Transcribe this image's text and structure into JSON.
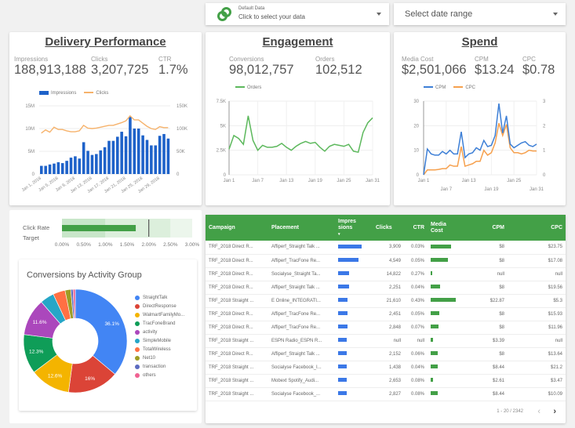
{
  "header": {
    "data_source": {
      "title": "Default Data",
      "subtitle": "Click to select your data"
    },
    "date_range": {
      "label": "Select date range"
    }
  },
  "delivery": {
    "title": "Delivery Performance",
    "kpis": [
      {
        "label": "Impressions",
        "value": "188,913,188"
      },
      {
        "label": "Clicks",
        "value": "3,207,725"
      },
      {
        "label": "CTR",
        "value": "1.7%"
      }
    ]
  },
  "engagement": {
    "title": "Engagement",
    "kpis": [
      {
        "label": "Conversions",
        "value": "98,012,757"
      },
      {
        "label": "Orders",
        "value": "102,512"
      }
    ]
  },
  "spend": {
    "title": "Spend",
    "kpis": [
      {
        "label": "Media Cost",
        "value": "$2,501,066"
      },
      {
        "label": "CPM",
        "value": "$13.24"
      },
      {
        "label": "CPC",
        "value": "$0.78"
      }
    ]
  },
  "bullet": {
    "labels": [
      "Click Rate",
      "Target"
    ],
    "value_percent": 1.7,
    "target_percent": 2.0,
    "ranges_percent": [
      1.0,
      2.5,
      3.0
    ],
    "ticks": [
      "0.00%",
      "0.50%",
      "1.00%",
      "1.50%",
      "2.00%",
      "2.50%",
      "3.00%"
    ],
    "max_percent": 3.0
  },
  "table": {
    "columns": [
      "Campaign",
      "Placement",
      "Impressions",
      "Clicks",
      "CTR",
      "Media Cost",
      "CPM",
      "CPC"
    ],
    "impressions_header_lines": [
      "Impres",
      "sions",
      "▾"
    ],
    "media_header_lines": [
      "Media",
      "Cost"
    ],
    "rows": [
      {
        "campaign": "TRF_2018 Direct R...",
        "placement": "Affiperf_Straight Talk ...",
        "impressions_rel": 1.0,
        "clicks": "3,909",
        "ctr": "0.03%",
        "media_rel": 0.8,
        "cpm": "$8",
        "cpc": "$23.75"
      },
      {
        "campaign": "TRF_2018 Direct R...",
        "placement": "Affiperf_TracFone Re...",
        "impressions_rel": 0.85,
        "clicks": "4,549",
        "ctr": "0.05%",
        "media_rel": 0.7,
        "cpm": "$8",
        "cpc": "$17.08"
      },
      {
        "campaign": "TRF_2018 Direct R...",
        "placement": "Socialyse_Straight Ta...",
        "impressions_rel": 0.45,
        "clicks": "14,822",
        "ctr": "0.27%",
        "media_rel": 0.02,
        "cpm": "null",
        "cpc": "null"
      },
      {
        "campaign": "TRF_2018 Direct R...",
        "placement": "Affiperf_Straight Talk ...",
        "impressions_rel": 0.45,
        "clicks": "2,251",
        "ctr": "0.04%",
        "media_rel": 0.38,
        "cpm": "$8",
        "cpc": "$19.56"
      },
      {
        "campaign": "TRF_2018 Straight ...",
        "placement": "E Online_INTEGRATI...",
        "impressions_rel": 0.4,
        "clicks": "21,610",
        "ctr": "0.43%",
        "media_rel": 1.0,
        "cpm": "$22.87",
        "cpc": "$5.3"
      },
      {
        "campaign": "TRF_2018 Direct R...",
        "placement": "Affiperf_TracFone Re...",
        "impressions_rel": 0.4,
        "clicks": "2,451",
        "ctr": "0.05%",
        "media_rel": 0.34,
        "cpm": "$8",
        "cpc": "$15.93"
      },
      {
        "campaign": "TRF_2018 Direct R...",
        "placement": "Affiperf_TracFone Re...",
        "impressions_rel": 0.4,
        "clicks": "2,848",
        "ctr": "0.07%",
        "media_rel": 0.3,
        "cpm": "$8",
        "cpc": "$11.96"
      },
      {
        "campaign": "TRF_2018 Straight ...",
        "placement": "ESPN Radio_ESPN R...",
        "impressions_rel": 0.38,
        "clicks": "null",
        "ctr": "null",
        "media_rel": 0.1,
        "cpm": "$3.39",
        "cpc": "null"
      },
      {
        "campaign": "TRF_2018 Direct R...",
        "placement": "Affiperf_Straight Talk ...",
        "impressions_rel": 0.38,
        "clicks": "2,152",
        "ctr": "0.06%",
        "media_rel": 0.28,
        "cpm": "$8",
        "cpc": "$13.64"
      },
      {
        "campaign": "TRF_2018 Straight ...",
        "placement": "Socialyse Facebook_I...",
        "impressions_rel": 0.38,
        "clicks": "1,438",
        "ctr": "0.04%",
        "media_rel": 0.28,
        "cpm": "$8.44",
        "cpc": "$21.2"
      },
      {
        "campaign": "TRF_2018 Straight ...",
        "placement": "Mobext Spotify_Audi...",
        "impressions_rel": 0.35,
        "clicks": "2,653",
        "ctr": "0.08%",
        "media_rel": 0.08,
        "cpm": "$2.61",
        "cpc": "$3.47"
      },
      {
        "campaign": "TRF_2018 Straight ...",
        "placement": "Socialyse Facebook_...",
        "impressions_rel": 0.35,
        "clicks": "2,827",
        "ctr": "0.08%",
        "media_rel": 0.28,
        "cpm": "$8.44",
        "cpc": "$10.09"
      }
    ],
    "pagination": "1 - 20 / 2342",
    "prev_label": "‹",
    "next_label": "›"
  },
  "colors": {
    "green": "#43a047",
    "blue": "#1e62c9",
    "orange": "#f6b26b",
    "cpm_blue": "#3d7fd6"
  },
  "chart_data": [
    {
      "type": "bar",
      "name": "delivery-chart",
      "title": "",
      "legend": [
        "Impressions",
        "Clicks"
      ],
      "legend_position": "top-left",
      "x_tick_labels": [
        "Jan 1, 2018",
        "Jan 5, 2018",
        "Jan 9, 2018",
        "Jan 13, 2018",
        "Jan 17, 2018",
        "Jan 21, 2018",
        "Jan 25, 2018",
        "Jan 29, 2018"
      ],
      "y_left_ticks": [
        "0",
        "5M",
        "10M",
        "15M"
      ],
      "y_right_ticks": [
        "0",
        "50K",
        "100K",
        "150K"
      ],
      "y_left_range": [
        0,
        15000000
      ],
      "y_right_range": [
        0,
        150000
      ],
      "series": [
        {
          "name": "Impressions",
          "axis": "left",
          "kind": "bar",
          "values": [
            1.8,
            1.8,
            2.1,
            2.3,
            2.6,
            2.4,
            2.9,
            3.6,
            3.9,
            3.4,
            7.0,
            5.1,
            4.2,
            4.4,
            5.2,
            5.9,
            7.3,
            7.3,
            8.2,
            9.3,
            8.3,
            12.6,
            10.0,
            10.0,
            8.5,
            7.5,
            6.3,
            6.3,
            8.4,
            8.8,
            7.8
          ]
        },
        {
          "name": "Clicks",
          "axis": "right",
          "kind": "line",
          "values": [
            90,
            97,
            92,
            103,
            98,
            98,
            95,
            93,
            93,
            95,
            107,
            101,
            100,
            101,
            103,
            105,
            107,
            107,
            110,
            113,
            117,
            128,
            119,
            119,
            112,
            105,
            100,
            98,
            104,
            102,
            102
          ]
        }
      ],
      "units": {
        "Impressions": "millions",
        "Clicks": "thousands"
      }
    },
    {
      "type": "line",
      "name": "orders-chart",
      "legend": [
        "Orders"
      ],
      "x_tick_labels": [
        "Jan 1",
        "Jan 7",
        "Jan 13",
        "Jan 19",
        "Jan 25",
        "Jan 31"
      ],
      "y_ticks": [
        "0",
        "2.5K",
        "5K",
        "7.5K"
      ],
      "y_range": [
        0,
        7500
      ],
      "series": [
        {
          "name": "Orders",
          "values": [
            2600,
            4000,
            3700,
            3100,
            6000,
            3500,
            2500,
            3000,
            2800,
            2800,
            2900,
            3200,
            2800,
            2500,
            2900,
            3200,
            3400,
            3200,
            3300,
            2800,
            2400,
            2900,
            3100,
            3000,
            2900,
            3100,
            2400,
            2300,
            4300,
            5300,
            5800
          ]
        }
      ]
    },
    {
      "type": "line",
      "name": "spend-chart",
      "legend": [
        "CPM",
        "CPC"
      ],
      "x_tick_labels": [
        "Jan 1",
        "Jan 7",
        "Jan 13",
        "Jan 19",
        "Jan 25",
        "Jan 31"
      ],
      "y_left_ticks": [
        "0",
        "10",
        "20",
        "30"
      ],
      "y_right_ticks": [
        "0",
        "1",
        "2",
        "3"
      ],
      "y_left_range": [
        0,
        30
      ],
      "y_right_range": [
        0,
        3
      ],
      "series": [
        {
          "name": "CPM",
          "axis": "left",
          "values": [
            0,
            10.5,
            8.5,
            8.0,
            8.0,
            9.5,
            8.5,
            10.0,
            8.5,
            8.5,
            17.5,
            7.0,
            8.5,
            9.0,
            11.0,
            10.0,
            14.0,
            11.5,
            12.0,
            16.0,
            29.0,
            17.0,
            24.0,
            12.5,
            11.0,
            12.0,
            13.0,
            13.5,
            12.0,
            11.5,
            12.5
          ]
        },
        {
          "name": "CPC",
          "axis": "right",
          "values": [
            0,
            0.2,
            0.2,
            0.2,
            0.22,
            0.25,
            0.25,
            0.4,
            0.35,
            0.35,
            1.15,
            0.35,
            0.4,
            0.45,
            0.55,
            0.55,
            1.0,
            0.8,
            0.9,
            1.3,
            2.1,
            1.6,
            2.05,
            1.1,
            0.9,
            0.9,
            0.85,
            0.9,
            1.0,
            0.97,
            0.97
          ]
        }
      ]
    },
    {
      "type": "pie",
      "name": "conversions-donut",
      "title": "Conversions by Activity Group",
      "legend_position": "right",
      "categories": [
        "StraightTalk",
        "DirectResponse",
        "WalmartFamilyMo...",
        "TracFoneBrand",
        "activity",
        "SimpleMobile",
        "TotalWireless",
        "Net10",
        "transaction",
        "others"
      ],
      "values": [
        36.1,
        16.0,
        12.6,
        12.3,
        11.6,
        4.4,
        3.8,
        1.8,
        0.7,
        0.7
      ],
      "labels_shown": [
        "36.1%",
        "16%",
        "12.6%",
        "12.3%",
        "11.6%"
      ],
      "colors": [
        "#4285f4",
        "#db4437",
        "#f4b400",
        "#0f9d58",
        "#ab47bc",
        "#26a6c7",
        "#ff7043",
        "#9e9d24",
        "#5c6bc0",
        "#f06292"
      ]
    }
  ]
}
